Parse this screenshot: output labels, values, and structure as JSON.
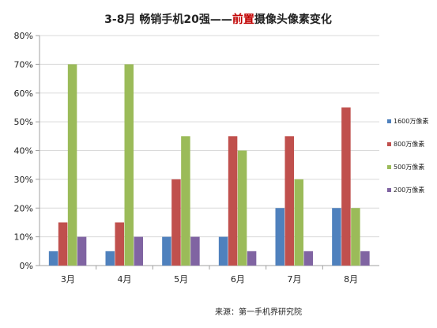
{
  "chart_data": {
    "type": "bar",
    "title_prefix": "3-8月 畅销手机20强——",
    "title_highlight": "前置",
    "title_suffix": "摄像头像素变化",
    "categories": [
      "3月",
      "4月",
      "5月",
      "6月",
      "7月",
      "8月"
    ],
    "series": [
      {
        "name": "1600万像素",
        "color": "#4f81bd",
        "values": [
          5,
          5,
          10,
          10,
          20,
          20
        ]
      },
      {
        "name": "800万像素",
        "color": "#c0504d",
        "values": [
          15,
          15,
          30,
          45,
          45,
          55
        ]
      },
      {
        "name": "500万像素",
        "color": "#9bbb59",
        "values": [
          70,
          70,
          45,
          40,
          30,
          20
        ]
      },
      {
        "name": "200万像素",
        "color": "#8064a2",
        "values": [
          10,
          10,
          10,
          5,
          5,
          5
        ]
      }
    ],
    "yticks": [
      "0%",
      "10%",
      "20%",
      "30%",
      "40%",
      "50%",
      "60%",
      "70%",
      "80%"
    ],
    "ylim": [
      0,
      80
    ],
    "grid": true,
    "legend_position": "right",
    "source": "来源：第一手机界研究院",
    "colors": {
      "highlight": "#c00000",
      "grid": "#d9d9d9",
      "axis": "#a0a0a0"
    }
  }
}
